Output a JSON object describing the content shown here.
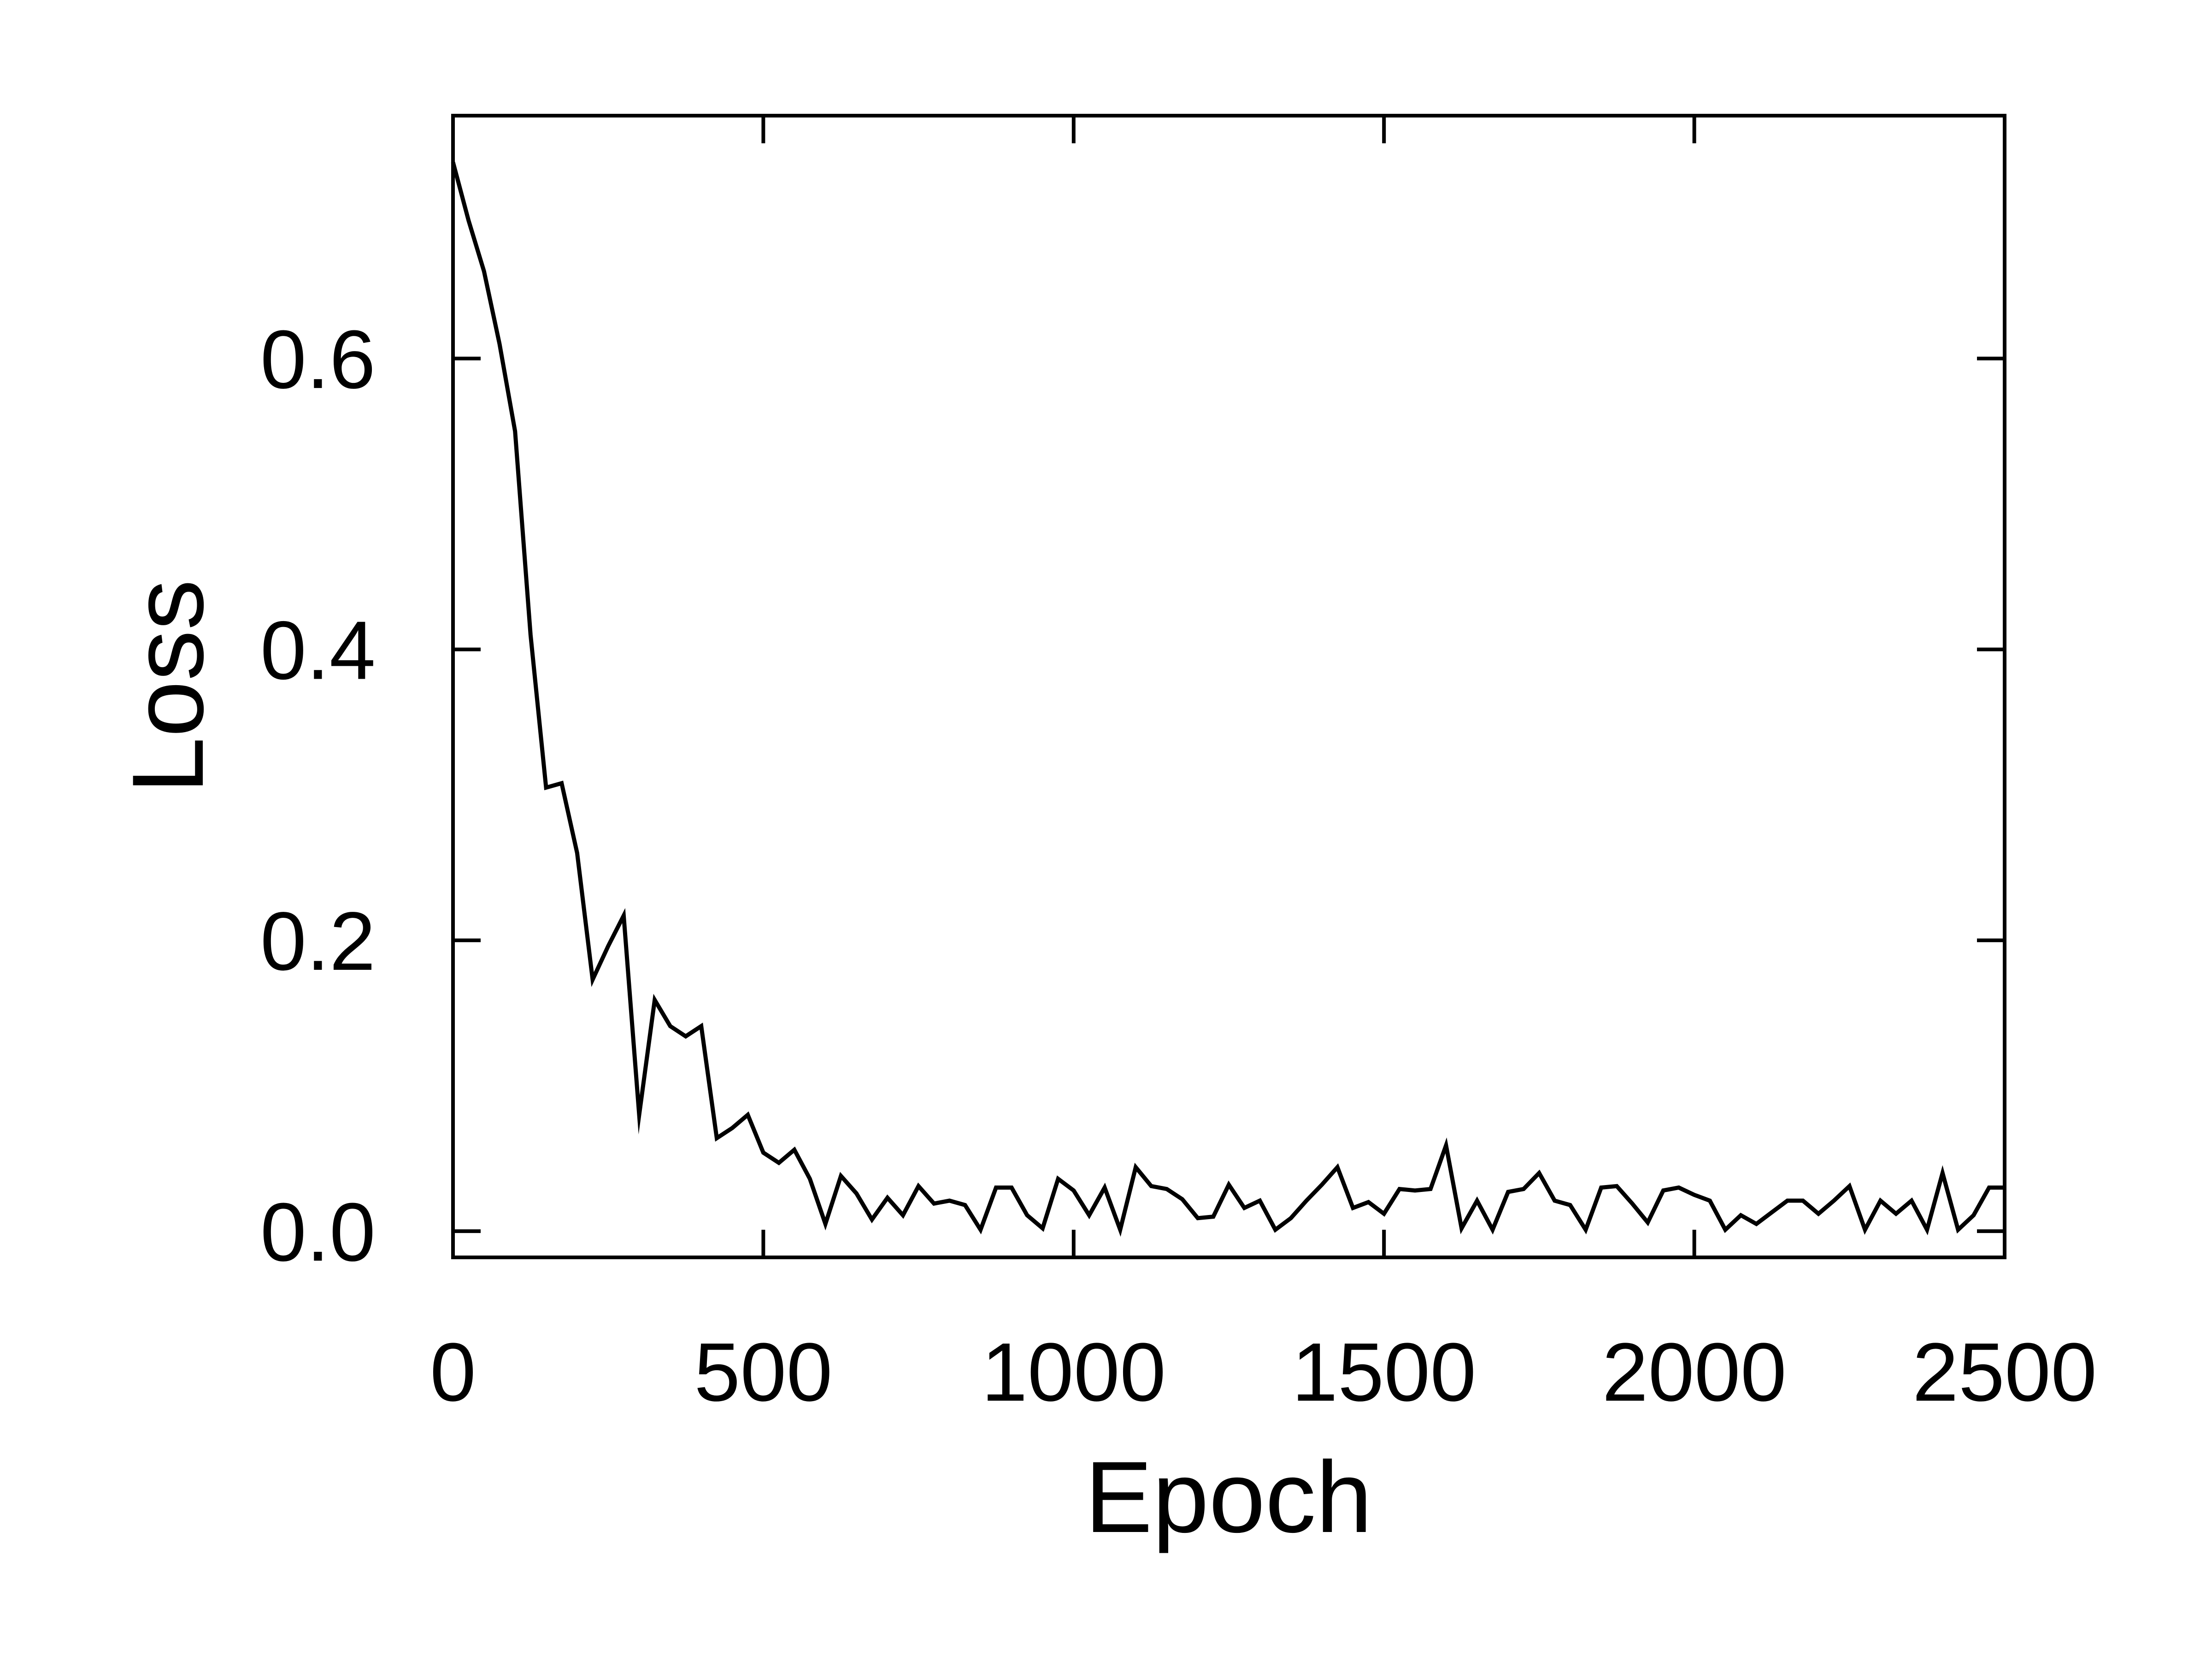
{
  "chart_data": {
    "type": "line",
    "title": "",
    "xlabel": "Epoch",
    "ylabel": "Loss",
    "xlim": [
      0,
      2500
    ],
    "ylim": [
      -0.018,
      0.767
    ],
    "xticks": [
      0,
      500,
      1000,
      1500,
      2000,
      2500
    ],
    "xtick_labels": [
      "0",
      "500",
      "1000",
      "1500",
      "2000",
      "2500"
    ],
    "yticks": [
      0.0,
      0.2,
      0.4,
      0.6
    ],
    "ytick_labels": [
      "0.0",
      "0.2",
      "0.4",
      "0.6"
    ],
    "grid": false,
    "legend": "none",
    "line_color": "#000000",
    "series": [
      {
        "x": [
          0,
          25,
          50,
          75,
          100,
          125,
          150,
          175,
          200,
          225,
          250,
          275,
          300,
          325,
          350,
          375,
          400,
          425,
          450,
          475,
          500,
          525,
          550,
          575,
          600,
          625,
          650,
          675,
          700,
          725,
          750,
          775,
          800,
          825,
          850,
          875,
          900,
          925,
          950,
          975,
          1000,
          1025,
          1050,
          1075,
          1100,
          1125,
          1150,
          1175,
          1200,
          1225,
          1250,
          1275,
          1300,
          1325,
          1350,
          1375,
          1400,
          1425,
          1450,
          1475,
          1500,
          1525,
          1550,
          1575,
          1600,
          1625,
          1650,
          1675,
          1700,
          1725,
          1750,
          1775,
          1800,
          1825,
          1850,
          1875,
          1900,
          1925,
          1950,
          1975,
          2000,
          2025,
          2050,
          2075,
          2100,
          2125,
          2150,
          2175,
          2200,
          2225,
          2250,
          2275,
          2300,
          2325,
          2350,
          2375,
          2400,
          2425,
          2450,
          2475,
          2500
        ],
        "y": [
          0.735,
          0.695,
          0.66,
          0.61,
          0.55,
          0.41,
          0.305,
          0.308,
          0.26,
          0.173,
          0.196,
          0.217,
          0.08,
          0.159,
          0.141,
          0.134,
          0.141,
          0.064,
          0.071,
          0.08,
          0.054,
          0.047,
          0.056,
          0.036,
          0.005,
          0.038,
          0.026,
          0.008,
          0.023,
          0.011,
          0.031,
          0.019,
          0.021,
          0.018,
          0.001,
          0.03,
          0.03,
          0.011,
          0.002,
          0.036,
          0.028,
          0.011,
          0.03,
          0.001,
          0.044,
          0.031,
          0.029,
          0.022,
          0.009,
          0.01,
          0.032,
          0.016,
          0.021,
          0.001,
          0.009,
          0.021,
          0.032,
          0.044,
          0.016,
          0.02,
          0.012,
          0.029,
          0.028,
          0.029,
          0.059,
          0.002,
          0.021,
          0.001,
          0.027,
          0.029,
          0.04,
          0.021,
          0.018,
          0.001,
          0.03,
          0.031,
          0.019,
          0.006,
          0.028,
          0.03,
          0.025,
          0.021,
          0.001,
          0.011,
          0.005,
          0.013,
          0.021,
          0.021,
          0.012,
          0.021,
          0.031,
          0.001,
          0.021,
          0.012,
          0.021,
          0.001,
          0.04,
          0.001,
          0.011,
          0.03,
          0.03
        ]
      }
    ]
  }
}
